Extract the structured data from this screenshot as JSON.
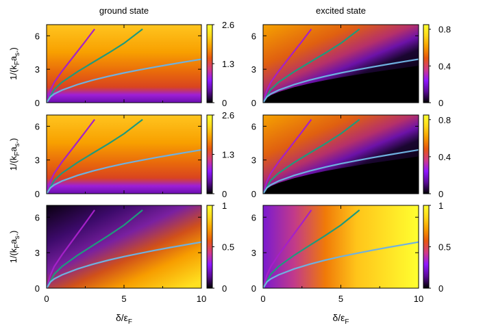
{
  "chart_data": {
    "type": "heatmap",
    "column_titles": [
      "ground state",
      "excited state"
    ],
    "xlabel": "δ/εF",
    "ylabel": "1/(kFas-)",
    "xlim": [
      0,
      10
    ],
    "ylim": [
      0,
      7
    ],
    "x_ticks": [
      "0",
      "5",
      "10"
    ],
    "y_ticks": [
      "0",
      "3",
      "6"
    ],
    "colormap": [
      "#000000",
      "#5a0b96",
      "#8f17ff",
      "#d23a86",
      "#e8570f",
      "#f79d00",
      "#ffd81a",
      "#ffff30"
    ],
    "curves": [
      {
        "color": "#a520c8",
        "x": [
          0,
          0.25,
          0.5,
          1,
          1.5,
          2,
          2.5,
          3.1
        ],
        "y": [
          0,
          1.13,
          1.84,
          2.83,
          3.72,
          4.61,
          5.5,
          6.6
        ]
      },
      {
        "color": "#1f9a7c",
        "x": [
          0,
          0.5,
          1,
          2,
          3,
          4,
          5,
          6.2
        ],
        "y": [
          0,
          1.2,
          1.84,
          2.78,
          3.62,
          4.45,
          5.33,
          6.6
        ]
      },
      {
        "color": "#6fb1e0",
        "x": [
          0,
          0.25,
          0.5,
          1,
          2,
          3,
          4,
          5,
          6,
          7,
          8,
          9,
          10
        ],
        "y": [
          0,
          0.53,
          0.79,
          1.13,
          1.63,
          2.03,
          2.37,
          2.67,
          2.94,
          3.2,
          3.44,
          3.67,
          3.9
        ]
      }
    ],
    "panels": [
      {
        "row": 0,
        "col": 0,
        "colorbar_ticks": [
          "0",
          "1.3",
          "2.6"
        ],
        "zrange": [
          0,
          2.6
        ]
      },
      {
        "row": 0,
        "col": 1,
        "colorbar_ticks": [
          "0",
          "0.4",
          "0.8"
        ],
        "zrange": [
          0,
          0.85
        ]
      },
      {
        "row": 1,
        "col": 0,
        "colorbar_ticks": [
          "0",
          "1.3",
          "2.6"
        ],
        "zrange": [
          0,
          2.6
        ]
      },
      {
        "row": 1,
        "col": 1,
        "colorbar_ticks": [
          "0",
          "0.4",
          "0.8"
        ],
        "zrange": [
          0,
          0.85
        ]
      },
      {
        "row": 2,
        "col": 0,
        "colorbar_ticks": [
          "0",
          "0.5",
          "1"
        ],
        "zrange": [
          0,
          1
        ]
      },
      {
        "row": 2,
        "col": 1,
        "colorbar_ticks": [
          "0",
          "0.5",
          "1"
        ],
        "zrange": [
          0,
          1
        ]
      }
    ]
  }
}
